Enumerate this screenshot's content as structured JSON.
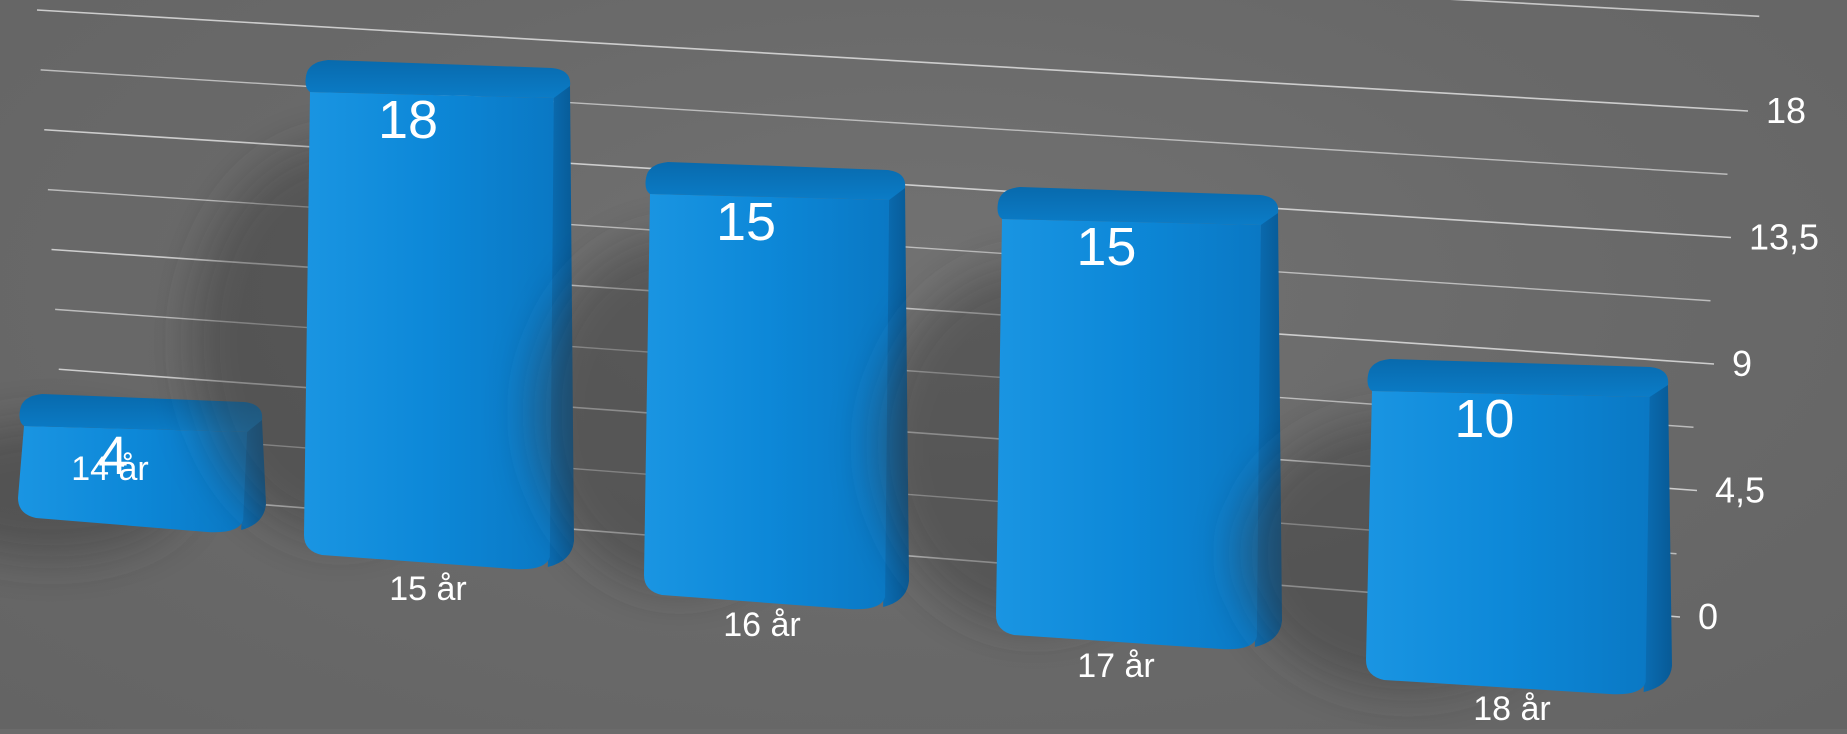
{
  "chart_data": {
    "type": "bar",
    "title": "",
    "xlabel": "",
    "ylabel": "",
    "categories": [
      "14 år",
      "15 år",
      "16 år",
      "17 år",
      "18 år"
    ],
    "values": [
      4,
      18,
      15,
      15,
      10
    ],
    "data_labels": [
      "4",
      "18",
      "15",
      "15",
      "10"
    ],
    "ylim": [
      0,
      18
    ],
    "y_ticks": [
      {
        "value": 0,
        "label": "0"
      },
      {
        "value": 4.5,
        "label": "4,5"
      },
      {
        "value": 9,
        "label": "9"
      },
      {
        "value": 13.5,
        "label": "13,5"
      },
      {
        "value": 18,
        "label": "18"
      }
    ],
    "grid": true,
    "style": "3d-perspective",
    "bar_color": "#0d86d6",
    "bar_top_color": "#0a6fb8",
    "background_color": "#6b6b6b",
    "gridline_color": "#d8d8d8",
    "text_color": "#ffffff"
  }
}
